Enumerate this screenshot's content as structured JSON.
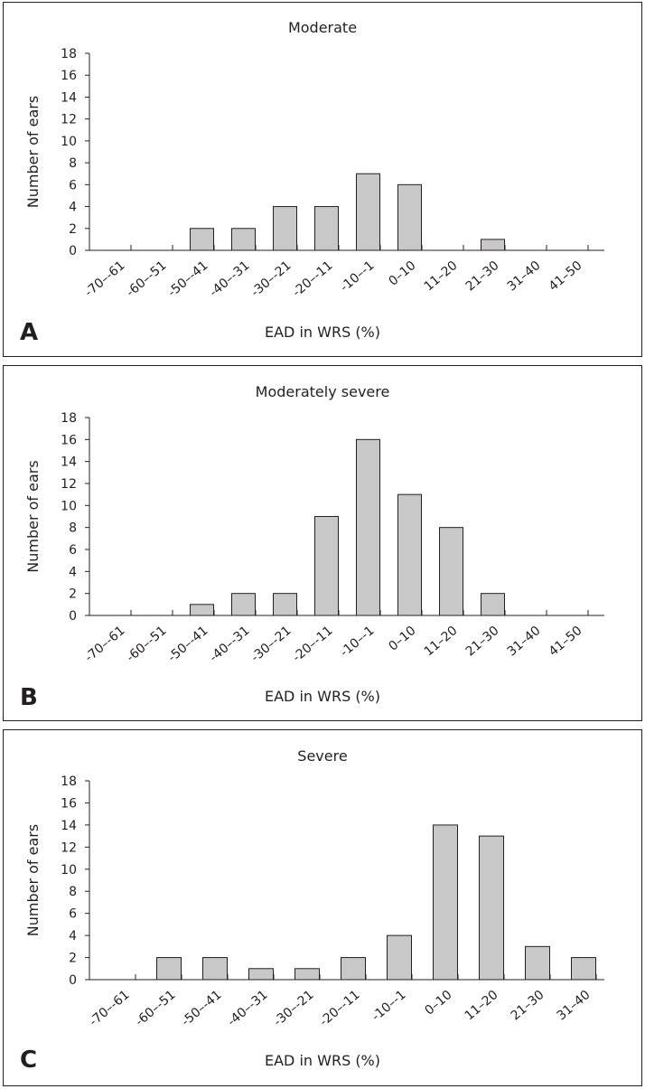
{
  "chart_data": [
    {
      "type": "bar",
      "panel_label": "A",
      "title": "Moderate",
      "xlabel": "EAD in WRS (%)",
      "ylabel": "Number of ears",
      "ylim": [
        0,
        18
      ],
      "yticks": [
        0,
        2,
        4,
        6,
        8,
        10,
        12,
        14,
        16,
        18
      ],
      "categories": [
        "-70–-61",
        "-60–-51",
        "-50–-41",
        "-40–-31",
        "-30–-21",
        "-20–-11",
        "-10–-1",
        "0–10",
        "11–20",
        "21–30",
        "31–40",
        "41–50"
      ],
      "values": [
        0,
        0,
        2,
        2,
        4,
        4,
        7,
        6,
        0,
        1,
        0,
        0
      ]
    },
    {
      "type": "bar",
      "panel_label": "B",
      "title": "Moderately severe",
      "xlabel": "EAD in WRS (%)",
      "ylabel": "Number of ears",
      "ylim": [
        0,
        18
      ],
      "yticks": [
        0,
        2,
        4,
        6,
        8,
        10,
        12,
        14,
        16,
        18
      ],
      "categories": [
        "-70–-61",
        "-60–-51",
        "-50–-41",
        "-40–-31",
        "-30–-21",
        "-20–-11",
        "-10–-1",
        "0–10",
        "11–20",
        "21–30",
        "31–40",
        "41–50"
      ],
      "values": [
        0,
        0,
        1,
        2,
        2,
        9,
        16,
        11,
        8,
        2,
        0,
        0
      ]
    },
    {
      "type": "bar",
      "panel_label": "C",
      "title": "Severe",
      "xlabel": "EAD in WRS (%)",
      "ylabel": "Number of ears",
      "ylim": [
        0,
        18
      ],
      "yticks": [
        0,
        2,
        4,
        6,
        8,
        10,
        12,
        14,
        16,
        18
      ],
      "categories": [
        "-70–-61",
        "-60–-51",
        "-50–-41",
        "-40–-31",
        "-30–-21",
        "-20–-11",
        "-10–-1",
        "0–10",
        "11–20",
        "21–30",
        "31–40"
      ],
      "values": [
        0,
        2,
        2,
        1,
        1,
        2,
        4,
        14,
        13,
        3,
        2
      ]
    }
  ]
}
